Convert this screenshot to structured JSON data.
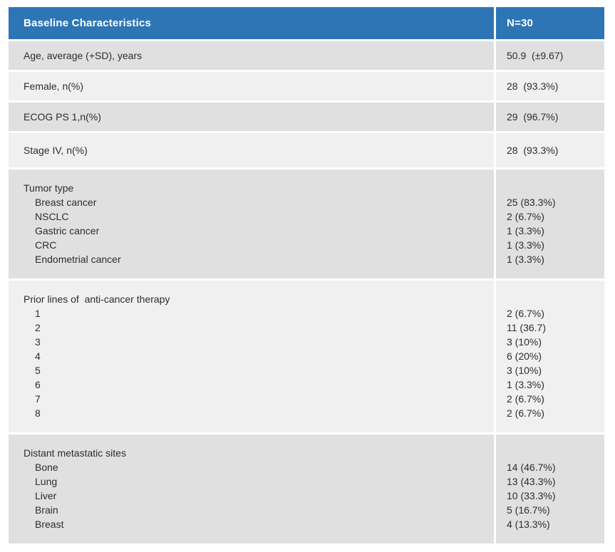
{
  "colors": {
    "header_bg": "#2e75b6",
    "header_text": "#ffffff",
    "row_dark": "#e0e0e0",
    "row_light": "#f0f0f0",
    "divider": "#ffffff",
    "body_text": "#2d2d2d"
  },
  "table": {
    "header": {
      "label": "Baseline Characteristics",
      "value": "N=30"
    },
    "rows": [
      {
        "label": "Age, average (+SD), years",
        "value": "50.9  (±9.67)"
      },
      {
        "label": "Female, n(%)",
        "value": "28  (93.3%)"
      },
      {
        "label": "ECOG PS 1,n(%)",
        "value": "29  (96.7%)"
      },
      {
        "label": "Stage IV, n(%)",
        "value": "28  (93.3%)"
      },
      {
        "label": "Tumor type",
        "items": [
          {
            "label": "Breast cancer",
            "value": "25 (83.3%)"
          },
          {
            "label": "NSCLC",
            "value": "2 (6.7%)"
          },
          {
            "label": "Gastric cancer",
            "value": "1 (3.3%)"
          },
          {
            "label": "CRC",
            "value": "1 (3.3%)"
          },
          {
            "label": "Endometrial cancer",
            "value": "1 (3.3%)"
          }
        ]
      },
      {
        "label": "Prior lines of  anti-cancer therapy",
        "items": [
          {
            "label": "1",
            "value": "2 (6.7%)"
          },
          {
            "label": "2",
            "value": "11 (36.7)"
          },
          {
            "label": "3",
            "value": "3 (10%)"
          },
          {
            "label": "4",
            "value": "6 (20%)"
          },
          {
            "label": "5",
            "value": "3 (10%)"
          },
          {
            "label": "6",
            "value": "1 (3.3%)"
          },
          {
            "label": "7",
            "value": "2 (6.7%)"
          },
          {
            "label": "8",
            "value": "2 (6.7%)"
          }
        ]
      },
      {
        "label": "Distant metastatic sites",
        "items": [
          {
            "label": "Bone",
            "value": "14 (46.7%)"
          },
          {
            "label": "Lung",
            "value": "13 (43.3%)"
          },
          {
            "label": "Liver",
            "value": "10 (33.3%)"
          },
          {
            "label": "Brain",
            "value": "5 (16.7%)"
          },
          {
            "label": "Breast",
            "value": "4 (13.3%)"
          }
        ]
      }
    ]
  }
}
